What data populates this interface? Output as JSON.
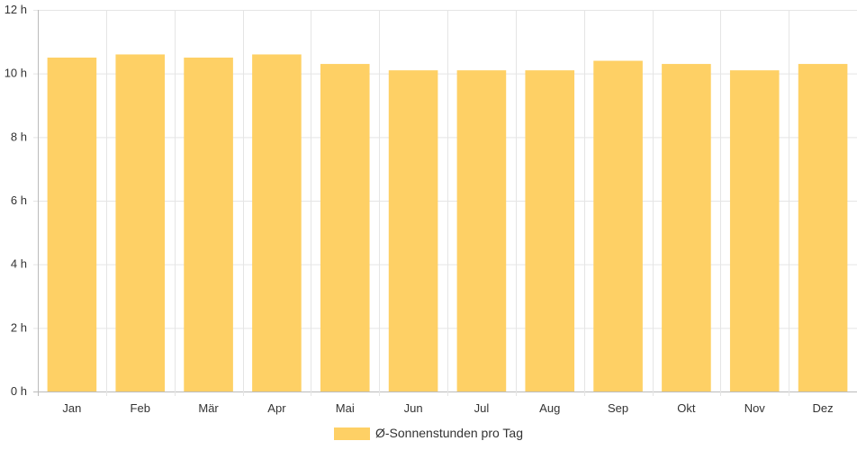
{
  "chart_data": {
    "type": "bar",
    "categories": [
      "Jan",
      "Feb",
      "Mär",
      "Apr",
      "Mai",
      "Jun",
      "Jul",
      "Aug",
      "Sep",
      "Okt",
      "Nov",
      "Dez"
    ],
    "series": [
      {
        "name": "Ø-Sonnenstunden pro Tag",
        "values": [
          10.5,
          10.6,
          10.5,
          10.6,
          10.3,
          10.1,
          10.1,
          10.1,
          10.4,
          10.3,
          10.1,
          10.3
        ]
      }
    ],
    "ylim": [
      0,
      12
    ],
    "yticks": [
      0,
      2,
      4,
      6,
      8,
      10,
      12
    ],
    "y_unit": "h",
    "grid": true,
    "legend_position": "bottom-center",
    "colors": {
      "bar": "#fed065",
      "grid": "#e5e5e5",
      "axis": "#bbbbbb",
      "text": "#333333"
    }
  }
}
